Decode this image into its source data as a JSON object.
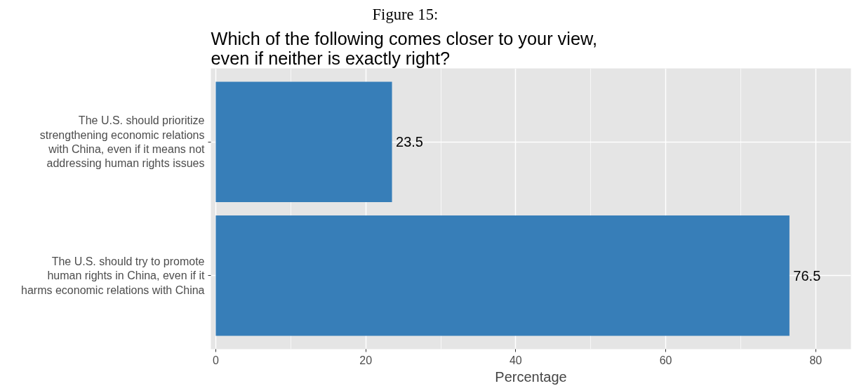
{
  "chart_data": {
    "type": "bar",
    "orientation": "horizontal",
    "title": "Figure 15:",
    "subtitle": "Which of the following comes closer to your view, even if neither is exactly right?",
    "categories": [
      "The U.S. should prioritize strengthening economic relations with China, even if it means not addressing human rights issues",
      "The U.S. should try to promote human rights in China, even if it harms economic relations with China"
    ],
    "values": [
      23.5,
      76.5
    ],
    "color": "#377eb8",
    "xlabel": "Percentage",
    "xlim": [
      -0.65,
      84.7
    ],
    "xticks": [
      0,
      20,
      40,
      60,
      80
    ],
    "grid": true,
    "data_labels": true
  }
}
